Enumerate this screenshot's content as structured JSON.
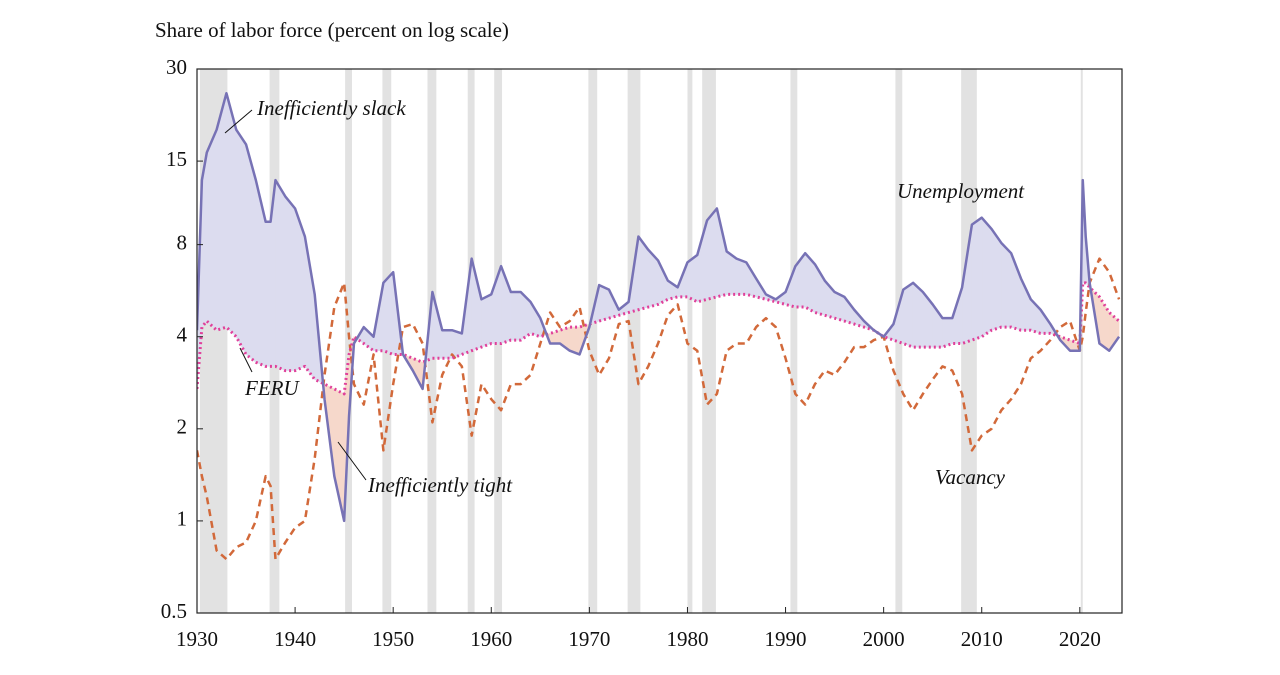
{
  "chart_data": {
    "type": "line",
    "title": "Share of labor force (percent on log scale)",
    "log_y": true,
    "xlim": [
      1930,
      2024.3
    ],
    "ylim": [
      0.5,
      30
    ],
    "xticks": [
      1930,
      1940,
      1950,
      1960,
      1970,
      1980,
      1990,
      2000,
      2010,
      2020
    ],
    "yticks": [
      0.5,
      1,
      2,
      4,
      8,
      15,
      30
    ],
    "x": [
      1930,
      1930.5,
      1931,
      1932,
      1933,
      1934,
      1935,
      1936,
      1937,
      1937.5,
      1938,
      1939,
      1940,
      1941,
      1942,
      1943,
      1944,
      1945,
      1945.5,
      1946,
      1947,
      1948,
      1949,
      1950,
      1951,
      1952,
      1953,
      1954,
      1955,
      1956,
      1957,
      1958,
      1959,
      1960,
      1961,
      1962,
      1963,
      1964,
      1965,
      1966,
      1967,
      1968,
      1969,
      1970,
      1971,
      1972,
      1973,
      1974,
      1975,
      1976,
      1977,
      1978,
      1979,
      1980,
      1981,
      1982,
      1983,
      1984,
      1985,
      1986,
      1987,
      1988,
      1989,
      1990,
      1991,
      1992,
      1993,
      1994,
      1995,
      1996,
      1997,
      1998,
      1999,
      2000,
      2001,
      2002,
      2003,
      2004,
      2005,
      2006,
      2007,
      2008,
      2009,
      2010,
      2011,
      2012,
      2013,
      2014,
      2015,
      2016,
      2017,
      2018,
      2019,
      2020,
      2020.3,
      2020.6,
      2021,
      2022,
      2023,
      2024
    ],
    "series": [
      {
        "name": "Unemployment",
        "color": "#7772b5",
        "dash": "solid",
        "values": [
          4.2,
          13,
          16,
          19,
          25,
          19,
          17,
          13,
          9.5,
          9.5,
          13,
          11.5,
          10.5,
          8.5,
          5.5,
          2.5,
          1.4,
          1.0,
          2.2,
          3.8,
          4.3,
          4.0,
          6.0,
          6.5,
          3.5,
          3.1,
          2.7,
          5.6,
          4.2,
          4.2,
          4.1,
          7.2,
          5.3,
          5.5,
          6.8,
          5.6,
          5.6,
          5.2,
          4.6,
          3.8,
          3.8,
          3.6,
          3.5,
          4.3,
          5.9,
          5.7,
          4.9,
          5.2,
          8.5,
          7.7,
          7.1,
          6.1,
          5.8,
          7.0,
          7.4,
          9.6,
          10.5,
          7.6,
          7.2,
          7.0,
          6.2,
          5.5,
          5.3,
          5.6,
          6.8,
          7.5,
          6.9,
          6.1,
          5.6,
          5.4,
          4.9,
          4.5,
          4.2,
          4.0,
          4.4,
          5.7,
          6.0,
          5.6,
          5.1,
          4.6,
          4.6,
          5.8,
          9.3,
          9.8,
          9.0,
          8.1,
          7.5,
          6.2,
          5.3,
          4.9,
          4.4,
          3.9,
          3.6,
          3.6,
          13,
          8.5,
          6.0,
          3.8,
          3.6,
          4.0
        ]
      },
      {
        "name": "Vacancy",
        "color": "#d2693a",
        "dash": "dashed",
        "values": [
          1.7,
          1.4,
          1.2,
          0.8,
          0.75,
          0.82,
          0.85,
          1.0,
          1.4,
          1.3,
          0.75,
          0.85,
          0.95,
          1.0,
          1.6,
          3.0,
          5.0,
          6.0,
          4.0,
          2.8,
          2.4,
          3.5,
          1.7,
          2.8,
          4.3,
          4.4,
          3.8,
          2.1,
          3.0,
          3.5,
          3.2,
          1.9,
          2.8,
          2.5,
          2.3,
          2.8,
          2.8,
          3.0,
          3.8,
          4.8,
          4.3,
          4.5,
          5.0,
          3.6,
          3.0,
          3.4,
          4.4,
          4.5,
          2.8,
          3.2,
          3.8,
          4.7,
          5.1,
          3.8,
          3.6,
          2.4,
          2.6,
          3.6,
          3.8,
          3.8,
          4.3,
          4.6,
          4.3,
          3.4,
          2.6,
          2.4,
          2.8,
          3.1,
          3.0,
          3.3,
          3.7,
          3.7,
          3.9,
          4.0,
          3.1,
          2.6,
          2.3,
          2.6,
          2.9,
          3.2,
          3.1,
          2.6,
          1.7,
          1.9,
          2.0,
          2.3,
          2.5,
          2.8,
          3.4,
          3.6,
          3.9,
          4.3,
          4.5,
          3.6,
          4.0,
          4.8,
          6.0,
          7.2,
          6.5,
          5.3
        ]
      },
      {
        "name": "FERU",
        "color": "#e0409a",
        "dash": "dotted",
        "values": [
          2.7,
          4.3,
          4.5,
          4.2,
          4.3,
          4.0,
          3.5,
          3.3,
          3.2,
          3.2,
          3.2,
          3.1,
          3.1,
          3.2,
          2.9,
          2.8,
          2.7,
          2.6,
          3.5,
          4.0,
          3.8,
          3.6,
          3.6,
          3.5,
          3.5,
          3.4,
          3.3,
          3.4,
          3.4,
          3.4,
          3.5,
          3.6,
          3.7,
          3.8,
          3.8,
          3.9,
          3.9,
          4.1,
          4.0,
          4.1,
          4.2,
          4.3,
          4.3,
          4.4,
          4.5,
          4.6,
          4.7,
          4.8,
          4.9,
          5.0,
          5.1,
          5.3,
          5.4,
          5.4,
          5.2,
          5.3,
          5.4,
          5.5,
          5.5,
          5.5,
          5.4,
          5.3,
          5.2,
          5.1,
          5.0,
          5.0,
          4.8,
          4.7,
          4.6,
          4.5,
          4.4,
          4.3,
          4.2,
          4.0,
          3.9,
          3.8,
          3.7,
          3.7,
          3.7,
          3.7,
          3.8,
          3.8,
          3.9,
          4.0,
          4.2,
          4.3,
          4.3,
          4.2,
          4.2,
          4.1,
          4.1,
          4.0,
          3.9,
          3.8,
          6.0,
          6.0,
          5.8,
          5.4,
          4.8,
          4.5
        ]
      }
    ],
    "recessions": [
      [
        1930.3,
        1933.1
      ],
      [
        1937.4,
        1938.4
      ],
      [
        1945.1,
        1945.8
      ],
      [
        1948.9,
        1949.8
      ],
      [
        1953.5,
        1954.4
      ],
      [
        1957.6,
        1958.3
      ],
      [
        1960.3,
        1961.1
      ],
      [
        1969.9,
        1970.8
      ],
      [
        1973.9,
        1975.2
      ],
      [
        1980.0,
        1980.5
      ],
      [
        1981.5,
        1982.9
      ],
      [
        1990.5,
        1991.2
      ],
      [
        2001.2,
        2001.9
      ],
      [
        2007.9,
        2009.5
      ],
      [
        2020.1,
        2020.3
      ]
    ],
    "slack_fill_color": "#dcdcef",
    "tight_fill_color": "#f6d8cb",
    "recession_color": "#e2e2e2",
    "annotations": [
      "Inefficiently slack",
      "Unemployment",
      "FERU",
      "Inefficiently tight",
      "Vacancy"
    ]
  }
}
